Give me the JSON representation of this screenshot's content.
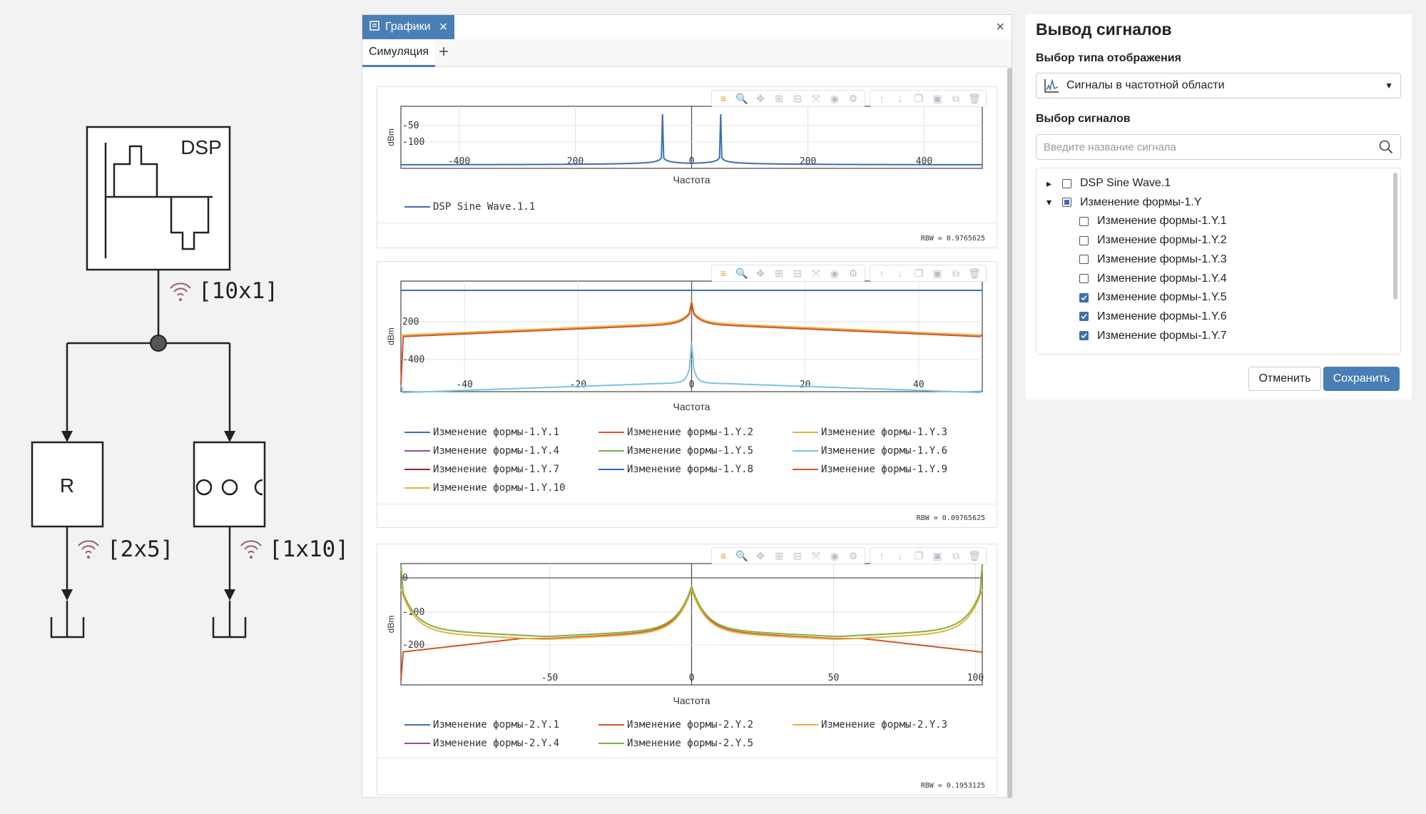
{
  "diagram": {
    "dsp_label": "DSP",
    "main_signal_dims": "[10x1]",
    "r_label": "R",
    "left_signal_dims": "[2x5]",
    "right_signal_dims": "[1x10]",
    "signal_color": "#9b5a7a"
  },
  "graphs_window": {
    "tab_title": "Графики",
    "close_symbol": "×",
    "sim_tab": "Симуляция",
    "add_tab_symbol": "+",
    "toolbar_icons": [
      "legend-icon",
      "zoom-icon",
      "pan-icon",
      "zoom-in-icon",
      "zoom-out-icon",
      "autoscale-icon",
      "camera-icon",
      "settings-icon",
      "arrow-up-icon",
      "arrow-down-icon",
      "copy-icon",
      "paste-icon",
      "duplicate-icon",
      "trash-icon"
    ]
  },
  "plots": [
    {
      "ytick_labels": [
        "-50",
        "-100"
      ],
      "xtick_labels": [
        "-400",
        "200",
        "0",
        "200",
        "400"
      ],
      "ylabel": "dBm",
      "xlabel": "Частота",
      "rbw": "RBW = 0.9765625",
      "legend": [
        {
          "name": "DSP Sine Wave.1.1",
          "color": "#3d6fb6"
        }
      ]
    },
    {
      "ytick_labels": [
        "200",
        "-400"
      ],
      "xtick_labels": [
        "-40",
        "-20",
        "0",
        "20",
        "40"
      ],
      "ylabel": "dBm",
      "xlabel": "Частота",
      "rbw": "RBW = 0.09765625",
      "legend": [
        {
          "name": "Изменение формы-1.Y.1",
          "color": "#3d6fb6"
        },
        {
          "name": "Изменение формы-1.Y.2",
          "color": "#d9592b"
        },
        {
          "name": "Изменение формы-1.Y.3",
          "color": "#e8b23c"
        },
        {
          "name": "Изменение формы-1.Y.4",
          "color": "#8c4fa0"
        },
        {
          "name": "Изменение формы-1.Y.5",
          "color": "#7fb043"
        },
        {
          "name": "Изменение формы-1.Y.6",
          "color": "#7cc0e8"
        },
        {
          "name": "Изменение формы-1.Y.7",
          "color": "#a3202e"
        },
        {
          "name": "Изменение формы-1.Y.8",
          "color": "#2f5fc4"
        },
        {
          "name": "Изменение формы-1.Y.9",
          "color": "#d2532b"
        },
        {
          "name": "Изменение формы-1.Y.10",
          "color": "#e8b23c"
        }
      ]
    },
    {
      "ytick_labels": [
        "0",
        "-100",
        "-200"
      ],
      "xtick_labels": [
        "-50",
        "0",
        "50",
        "100"
      ],
      "ylabel": "dBm",
      "xlabel": "Частота",
      "rbw": "RBW = 0.1953125",
      "legend": [
        {
          "name": "Изменение формы-2.Y.1",
          "color": "#3d6fb6"
        },
        {
          "name": "Изменение формы-2.Y.2",
          "color": "#d2532b"
        },
        {
          "name": "Изменение формы-2.Y.3",
          "color": "#e8b23c"
        },
        {
          "name": "Изменение формы-2.Y.4",
          "color": "#8c4fa0"
        },
        {
          "name": "Изменение формы-2.Y.5",
          "color": "#7fb043"
        }
      ]
    }
  ],
  "signals_panel": {
    "title": "Вывод сигналов",
    "display_type_label": "Выбор типа отображения",
    "display_type_value": "Сигналы в частотной области",
    "signals_label": "Выбор сигналов",
    "search_placeholder": "Введите название сигнала",
    "tree": [
      {
        "label": "DSP Sine Wave.1",
        "level": 0,
        "expander": "▸",
        "state": "unchecked"
      },
      {
        "label": "Изменение формы-1.Y",
        "level": 0,
        "expander": "▾",
        "state": "partial"
      },
      {
        "label": "Изменение формы-1.Y.1",
        "level": 1,
        "state": "unchecked"
      },
      {
        "label": "Изменение формы-1.Y.2",
        "level": 1,
        "state": "unchecked"
      },
      {
        "label": "Изменение формы-1.Y.3",
        "level": 1,
        "state": "unchecked"
      },
      {
        "label": "Изменение формы-1.Y.4",
        "level": 1,
        "state": "unchecked"
      },
      {
        "label": "Изменение формы-1.Y.5",
        "level": 1,
        "state": "checked"
      },
      {
        "label": "Изменение формы-1.Y.6",
        "level": 1,
        "state": "checked"
      },
      {
        "label": "Изменение формы-1.Y.7",
        "level": 1,
        "state": "checked"
      }
    ],
    "cancel_label": "Отменить",
    "save_label": "Сохранить",
    "accent_color": "#4a7fb5"
  }
}
